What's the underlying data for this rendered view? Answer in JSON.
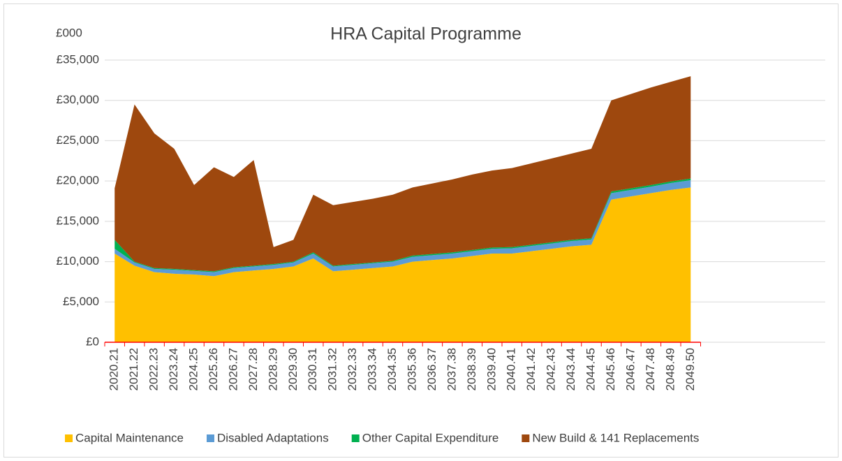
{
  "chart_data": {
    "type": "stacked_area",
    "title": "HRA Capital Programme",
    "y_axis_label": "£000",
    "categories": [
      "2020.21",
      "2021.22",
      "2022.23",
      "2023.24",
      "2024.25",
      "2025.26",
      "2026.27",
      "2027.28",
      "2028.29",
      "2029.30",
      "2030.31",
      "2031.32",
      "2032.33",
      "2033.34",
      "2034.35",
      "2035.36",
      "2036.37",
      "2037.38",
      "2038.39",
      "2039.40",
      "2040.41",
      "2041.42",
      "2042.43",
      "2043.44",
      "2044.45",
      "2045.46",
      "2046.47",
      "2047.48",
      "2048.49",
      "2049.50"
    ],
    "series": [
      {
        "name": "Capital Maintenance",
        "color": "#ffc000",
        "values": [
          11000,
          9500,
          8700,
          8500,
          8400,
          8200,
          8700,
          8900,
          9100,
          9400,
          10400,
          8800,
          9000,
          9200,
          9400,
          10000,
          10200,
          10400,
          10700,
          11000,
          11000,
          11300,
          11600,
          11900,
          12100,
          17700,
          18100,
          18500,
          18900,
          19200
        ]
      },
      {
        "name": "Disabled Adaptations",
        "color": "#5b9bd5",
        "values": [
          600,
          400,
          400,
          500,
          450,
          500,
          500,
          500,
          500,
          500,
          600,
          600,
          600,
          600,
          600,
          600,
          600,
          600,
          600,
          600,
          650,
          650,
          650,
          650,
          650,
          800,
          800,
          800,
          850,
          900
        ]
      },
      {
        "name": "Other Capital Expenditure",
        "color": "#00b050",
        "values": [
          1100,
          100,
          100,
          100,
          100,
          100,
          100,
          100,
          100,
          100,
          150,
          100,
          100,
          100,
          100,
          150,
          150,
          150,
          150,
          150,
          150,
          150,
          150,
          150,
          150,
          200,
          200,
          200,
          200,
          200
        ]
      },
      {
        "name": "New Build & 141 Replacements",
        "color": "#9e480e",
        "values": [
          6400,
          19500,
          16700,
          14900,
          10550,
          12900,
          11200,
          13100,
          2100,
          2700,
          7150,
          7500,
          7700,
          7900,
          8200,
          8450,
          8750,
          9050,
          9350,
          9550,
          9800,
          10100,
          10400,
          10700,
          11100,
          11300,
          11700,
          12100,
          12350,
          12700
        ]
      }
    ],
    "ylim": [
      0,
      35000
    ],
    "yticks": [
      {
        "value": 0,
        "label": "£0"
      },
      {
        "value": 5000,
        "label": "£5,000"
      },
      {
        "value": 10000,
        "label": "£10,000"
      },
      {
        "value": 15000,
        "label": "£15,000"
      },
      {
        "value": 20000,
        "label": "£20,000"
      },
      {
        "value": 25000,
        "label": "£25,000"
      },
      {
        "value": 30000,
        "label": "£30,000"
      },
      {
        "value": 35000,
        "label": "£35,000"
      }
    ],
    "grid": true
  }
}
